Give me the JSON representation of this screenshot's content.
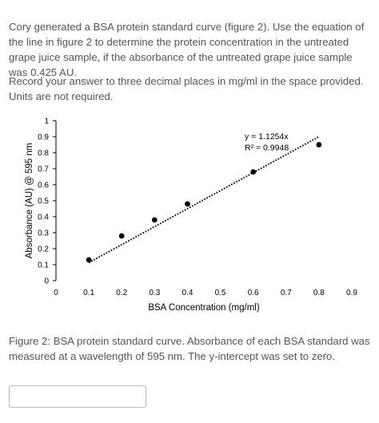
{
  "question": {
    "text": "Cory generated a BSA protein standard curve (figure 2). Use the equation of the line in figure 2 to determine the protein concentration in the untreated grape juice sample, if the absorbance of the untreated grape juice sample was 0.425 AU.",
    "instructions": "Record your answer to three decimal places in mg/ml in the space provided. Units are not required."
  },
  "chart_data": {
    "type": "scatter",
    "xlabel": "BSA Concentration (mg/ml)",
    "ylabel": "Absorbance (AU) @ 595 nm",
    "xlim": [
      0,
      0.9
    ],
    "ylim": [
      0,
      1
    ],
    "x_ticks": [
      "0",
      "0.1",
      "0.2",
      "0.3",
      "0.4",
      "0.5",
      "0.6",
      "0.7",
      "0.8",
      "0.9"
    ],
    "y_ticks": [
      "0",
      "0.1",
      "0.2",
      "0.3",
      "0.4",
      "0.5",
      "0.6",
      "0.7",
      "0.8",
      "0.9",
      "1"
    ],
    "points": [
      {
        "x": 0.1,
        "y": 0.13
      },
      {
        "x": 0.2,
        "y": 0.28
      },
      {
        "x": 0.3,
        "y": 0.38
      },
      {
        "x": 0.4,
        "y": 0.48
      },
      {
        "x": 0.6,
        "y": 0.68
      },
      {
        "x": 0.8,
        "y": 0.85
      }
    ],
    "trendline": {
      "slope": 1.1254,
      "intercept": 0,
      "x_range": [
        0.1,
        0.8
      ],
      "style": "dotted"
    },
    "annotations": {
      "equation": "y = 1.1254x",
      "r_squared": "R² = 0.9948"
    },
    "grid": false,
    "legend": "none"
  },
  "caption": {
    "text": "Figure 2: BSA protein standard curve. Absorbance of each BSA standard was measured at a wavelength of 595 nm. The y-intercept was set to zero."
  },
  "answer": {
    "value": ""
  }
}
